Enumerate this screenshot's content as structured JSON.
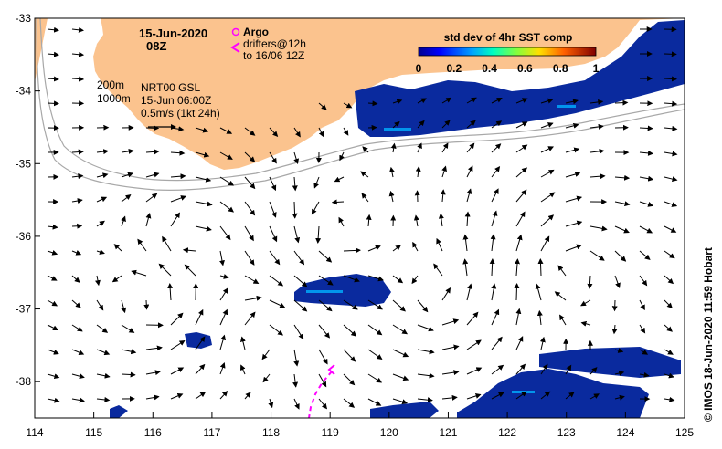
{
  "map": {
    "date": "15-Jun-2020",
    "time": "08Z",
    "legend_argo": "Argo",
    "legend_drifters_line1": "drifters@12h",
    "legend_drifters_line2": "to 16/06 12Z",
    "contour_200": "200m",
    "contour_1000": "1000m",
    "source_line1": "NRT00 GSL",
    "source_line2": "15-Jun 06:00Z",
    "scale_label": "0.5m/s (1kt 24h)",
    "colorbar_title": "std dev of 4hr SST comp",
    "colorbar_ticks": [
      "0",
      "0.2",
      "0.4",
      "0.6",
      "0.8",
      "1"
    ],
    "credit": "© IMOS 18-Jun-2020 11:59 Hobart",
    "x_ticks": [
      "114",
      "115",
      "116",
      "117",
      "118",
      "119",
      "120",
      "121",
      "122",
      "123",
      "124",
      "125"
    ],
    "y_ticks": [
      "-33",
      "-34",
      "-35",
      "-36",
      "-37",
      "-38"
    ],
    "lon_range": [
      114,
      125
    ],
    "lat_range": [
      -38.5,
      -33
    ],
    "colors": {
      "land": "#FBC38E",
      "sst_patch": "#0A2A9E",
      "drifter": "#FF00FF",
      "argo": "#FF00FF",
      "contour": "#A8A8A8"
    }
  }
}
